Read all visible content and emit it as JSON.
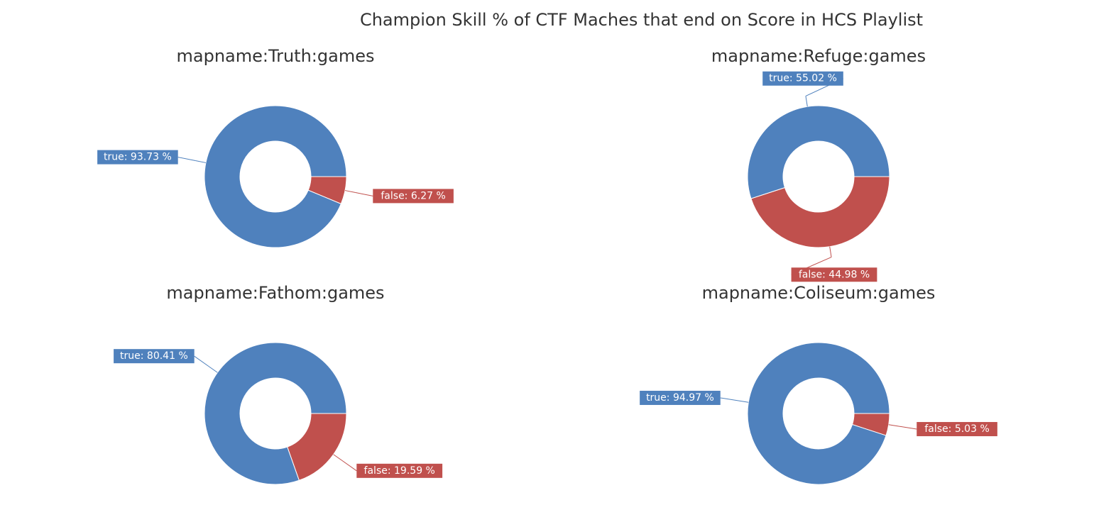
{
  "title": "Champion Skill % of CTF Maches that end on Score in HCS Playlist",
  "colors": {
    "true": "#4f81bd",
    "false": "#c0504d"
  },
  "chart_data": [
    {
      "type": "pie",
      "title": "mapname:Truth:games",
      "categories": [
        "true",
        "false"
      ],
      "values": [
        93.73,
        6.27
      ],
      "labels": [
        "true: 93.73 %",
        "false: 6.27 %"
      ]
    },
    {
      "type": "pie",
      "title": "mapname:Refuge:games",
      "categories": [
        "true",
        "false"
      ],
      "values": [
        55.02,
        44.98
      ],
      "labels": [
        "true: 55.02 %",
        "false: 44.98 %"
      ]
    },
    {
      "type": "pie",
      "title": "mapname:Fathom:games",
      "categories": [
        "true",
        "false"
      ],
      "values": [
        80.41,
        19.59
      ],
      "labels": [
        "true: 80.41 %",
        "false: 19.59 %"
      ]
    },
    {
      "type": "pie",
      "title": "mapname:Coliseum:games",
      "categories": [
        "true",
        "false"
      ],
      "values": [
        94.97,
        5.03
      ],
      "labels": [
        "true: 94.97 %",
        "false: 5.03 %"
      ]
    }
  ]
}
